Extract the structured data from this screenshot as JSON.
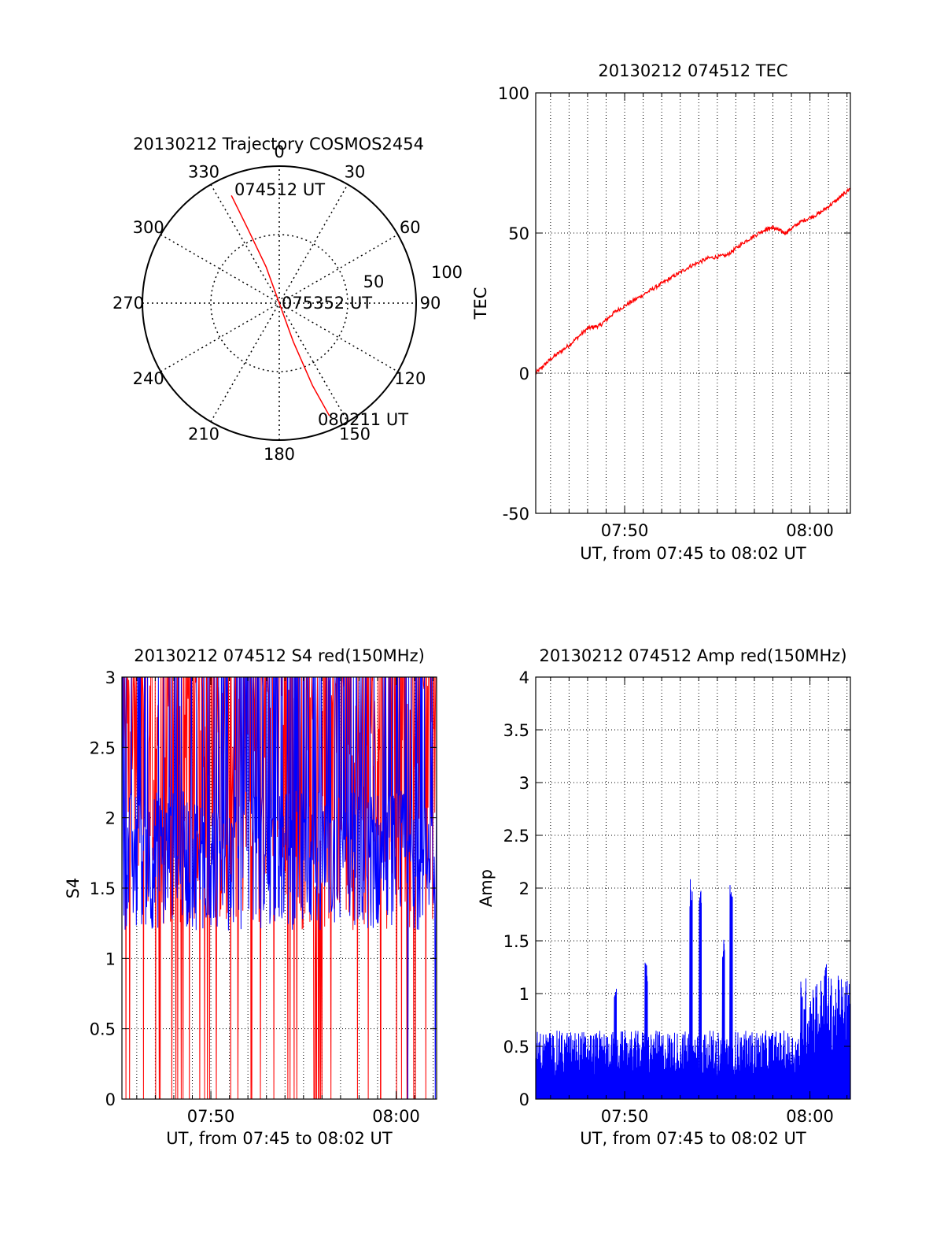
{
  "colors": {
    "red": "#ff0000",
    "blue": "#0000ff",
    "axis": "#000000",
    "grid": "#000000"
  },
  "chart_data": [
    {
      "id": "trajectory",
      "type": "polar",
      "title": "20130212 Trajectory COSMOS2454",
      "angle_labels": [
        "0",
        "30",
        "60",
        "90",
        "120",
        "150",
        "180",
        "210",
        "240",
        "270",
        "300",
        "330"
      ],
      "radius_labels": [
        "50",
        "100"
      ],
      "radius_unit_note": "",
      "rmax": 100,
      "track": {
        "color": "#ff0000",
        "points": [
          {
            "az": 336,
            "el": 14
          },
          {
            "az": 337,
            "el": 40
          },
          {
            "az": 340,
            "el": 72
          },
          {
            "az": 160,
            "el": 98
          },
          {
            "az": 160,
            "el": 70
          },
          {
            "az": 158,
            "el": 35
          },
          {
            "az": 156,
            "el": 10
          }
        ]
      },
      "annotations": [
        {
          "text": "074512 UT",
          "az": 354,
          "el": 17
        },
        {
          "text": "075352 UT",
          "az": 90,
          "el": 100
        },
        {
          "text": "080211 UT",
          "az": 150,
          "el": 12
        }
      ]
    },
    {
      "id": "tec",
      "type": "line",
      "title": "20130212 074512 TEC",
      "xlabel": "UT, from 07:45 to 08:02 UT",
      "ylabel": "TEC",
      "xlim": [
        "07:45:12",
        "08:02:11"
      ],
      "ylim": [
        -50,
        100
      ],
      "yticks": [
        "100",
        "50",
        "0",
        "-50"
      ],
      "xticks": [
        "07:50",
        "08:00"
      ],
      "grid": true,
      "series": [
        {
          "color": "#ff0000",
          "x": [
            "07:45:12",
            "07:46:00",
            "07:47:00",
            "07:48:00",
            "07:48:40",
            "07:49:30",
            "07:50:30",
            "07:51:30",
            "07:52:30",
            "07:53:30",
            "07:54:30",
            "07:55:30",
            "07:56:30",
            "07:57:30",
            "07:58:00",
            "07:58:40",
            "07:59:30",
            "08:00:30",
            "08:01:30",
            "08:02:11"
          ],
          "y": [
            0,
            5,
            10,
            16,
            17,
            22,
            26,
            30,
            34,
            38,
            41,
            42,
            47,
            51,
            52,
            50,
            54,
            57,
            62,
            66
          ]
        }
      ]
    },
    {
      "id": "s4",
      "type": "line",
      "title": "20130212 074512 S4 red(150MHz)",
      "xlabel": "UT, from 07:45 to 08:02 UT",
      "ylabel": "S4",
      "xlim": [
        "07:45:12",
        "08:02:11"
      ],
      "ylim": [
        0,
        3
      ],
      "yticks": [
        "3",
        "2.5",
        "2",
        "1.5",
        "1",
        "0.5",
        "0"
      ],
      "xticks": [
        "07:50",
        "08:00"
      ],
      "grid": true,
      "series": [
        {
          "color": "#ff0000",
          "level_range": [
            1.2,
            3
          ],
          "drop_to": 0
        },
        {
          "color": "#0000ff",
          "level_range": [
            1.2,
            2.2
          ],
          "spike_to": 3
        }
      ]
    },
    {
      "id": "amp",
      "type": "bar",
      "title": "20130212 074512 Amp red(150MHz)",
      "xlabel": "UT, from 07:45 to 08:02 UT",
      "ylabel": "Amp",
      "xlim": [
        "07:45:12",
        "08:02:11"
      ],
      "ylim": [
        0,
        4
      ],
      "yticks": [
        "4",
        "3.5",
        "3",
        "2.5",
        "2",
        "1.5",
        "1",
        "0.5",
        "0"
      ],
      "xticks": [
        "07:50",
        "08:00"
      ],
      "grid": true,
      "series": [
        {
          "color": "#0000ff",
          "baseline_level": 0.5,
          "late_segment_start": "07:59:30",
          "late_segment_level": 0.9,
          "peaks": [
            {
              "t": "07:49:30",
              "v": 1.05
            },
            {
              "t": "07:51:10",
              "v": 1.3
            },
            {
              "t": "07:53:35",
              "v": 2.1
            },
            {
              "t": "07:54:05",
              "v": 2.15
            },
            {
              "t": "07:55:20",
              "v": 1.55
            },
            {
              "t": "07:55:45",
              "v": 2.05
            },
            {
              "t": "08:00:50",
              "v": 1.3
            }
          ]
        }
      ]
    }
  ]
}
